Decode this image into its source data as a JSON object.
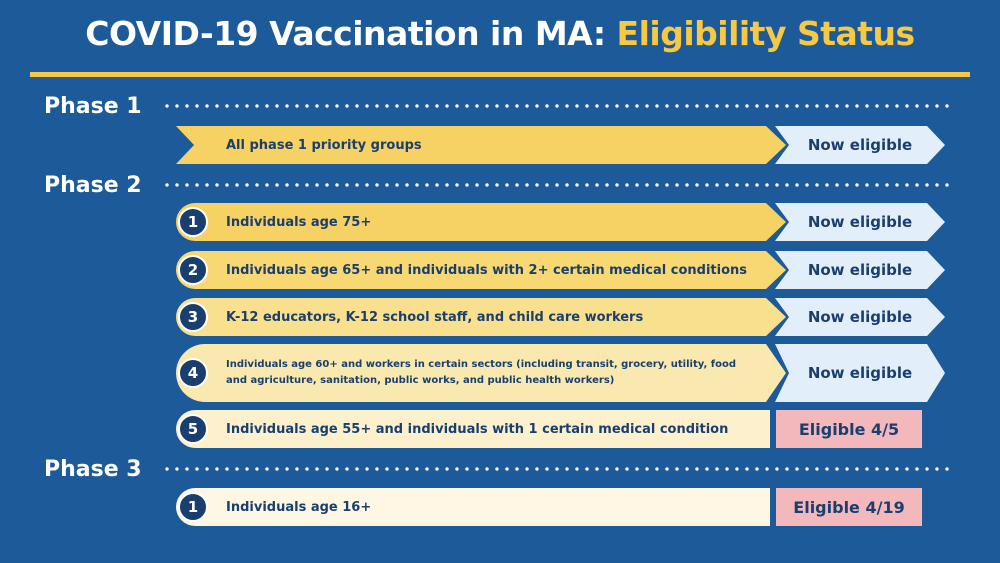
{
  "title": {
    "part1": "COVID-19 Vaccination in MA: ",
    "part2": "Eligibility Status"
  },
  "colors": {
    "background": "#1d5a9a",
    "accent": "#f7c843",
    "eligible_now": "#e3eefb",
    "eligible_future": "#f2b8bc",
    "text_dark": "#1a3f6e"
  },
  "phases": [
    {
      "label": "Phase 1",
      "groups": [
        {
          "number": "",
          "text": "All phase 1 priority groups",
          "status": "Now eligible"
        }
      ]
    },
    {
      "label": "Phase 2",
      "groups": [
        {
          "number": "1",
          "text": "Individuals age 75+",
          "status": "Now eligible"
        },
        {
          "number": "2",
          "text": "Individuals age 65+ and individuals with 2+ certain medical conditions",
          "status": "Now eligible"
        },
        {
          "number": "3",
          "text": "K-12 educators, K-12 school staff, and child care workers",
          "status": "Now eligible"
        },
        {
          "number": "4",
          "text": "Individuals age 60+ and workers in certain sectors (including transit, grocery, utility, food and agriculture, sanitation, public works, and public health workers)",
          "status": "Now eligible"
        },
        {
          "number": "5",
          "text": "Individuals age 55+ and individuals with 1 certain medical condition",
          "status": "Eligible 4/5"
        }
      ]
    },
    {
      "label": "Phase 3",
      "groups": [
        {
          "number": "1",
          "text": "Individuals age 16+",
          "status": "Eligible 4/19"
        }
      ]
    }
  ]
}
